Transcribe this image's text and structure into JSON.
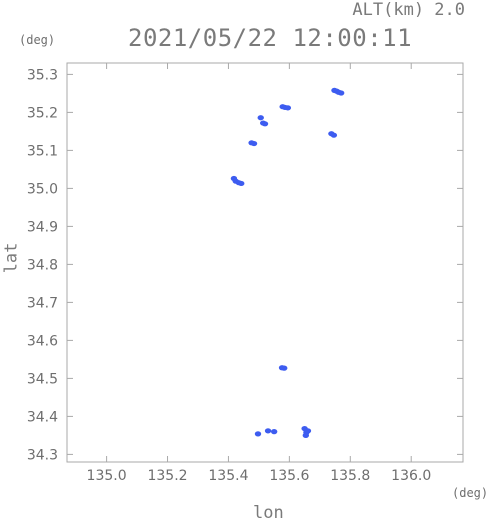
{
  "header": {
    "altitude": "ALT(km) 2.0",
    "timestamp": "2021/05/22 12:00:11"
  },
  "chart_data": {
    "type": "scatter",
    "title": "2021/05/22 12:00:11",
    "subtitle": "ALT(km) 2.0",
    "xlabel": "lon",
    "ylabel": "lat",
    "x_unit": "(deg)",
    "y_unit": "(deg)",
    "xlim": [
      134.87,
      136.17
    ],
    "ylim": [
      34.28,
      35.33
    ],
    "x_ticks": [
      "135.0",
      "135.2",
      "135.4",
      "135.6",
      "135.8",
      "136.0"
    ],
    "y_ticks": [
      "34.3",
      "34.4",
      "34.5",
      "34.6",
      "34.7",
      "34.8",
      "34.9",
      "35.0",
      "35.1",
      "35.2",
      "35.3"
    ],
    "grid": false,
    "point_color": "#3d5cf0",
    "points": [
      {
        "x": 135.755,
        "y": 35.256
      },
      {
        "x": 135.748,
        "y": 35.258
      },
      {
        "x": 135.762,
        "y": 35.253
      },
      {
        "x": 135.77,
        "y": 35.251
      },
      {
        "x": 135.586,
        "y": 35.213
      },
      {
        "x": 135.578,
        "y": 35.215
      },
      {
        "x": 135.595,
        "y": 35.212
      },
      {
        "x": 135.506,
        "y": 35.186
      },
      {
        "x": 135.514,
        "y": 35.172
      },
      {
        "x": 135.52,
        "y": 35.17
      },
      {
        "x": 135.476,
        "y": 35.12
      },
      {
        "x": 135.484,
        "y": 35.118
      },
      {
        "x": 135.738,
        "y": 35.144
      },
      {
        "x": 135.746,
        "y": 35.14
      },
      {
        "x": 135.418,
        "y": 35.026
      },
      {
        "x": 135.424,
        "y": 35.019
      },
      {
        "x": 135.434,
        "y": 35.015
      },
      {
        "x": 135.442,
        "y": 35.013
      },
      {
        "x": 135.576,
        "y": 34.528
      },
      {
        "x": 135.583,
        "y": 34.527
      },
      {
        "x": 135.65,
        "y": 34.368
      },
      {
        "x": 135.656,
        "y": 34.358
      },
      {
        "x": 135.661,
        "y": 34.362
      },
      {
        "x": 135.654,
        "y": 34.35
      },
      {
        "x": 135.53,
        "y": 34.362
      },
      {
        "x": 135.497,
        "y": 34.354
      },
      {
        "x": 135.55,
        "y": 34.36
      }
    ]
  }
}
